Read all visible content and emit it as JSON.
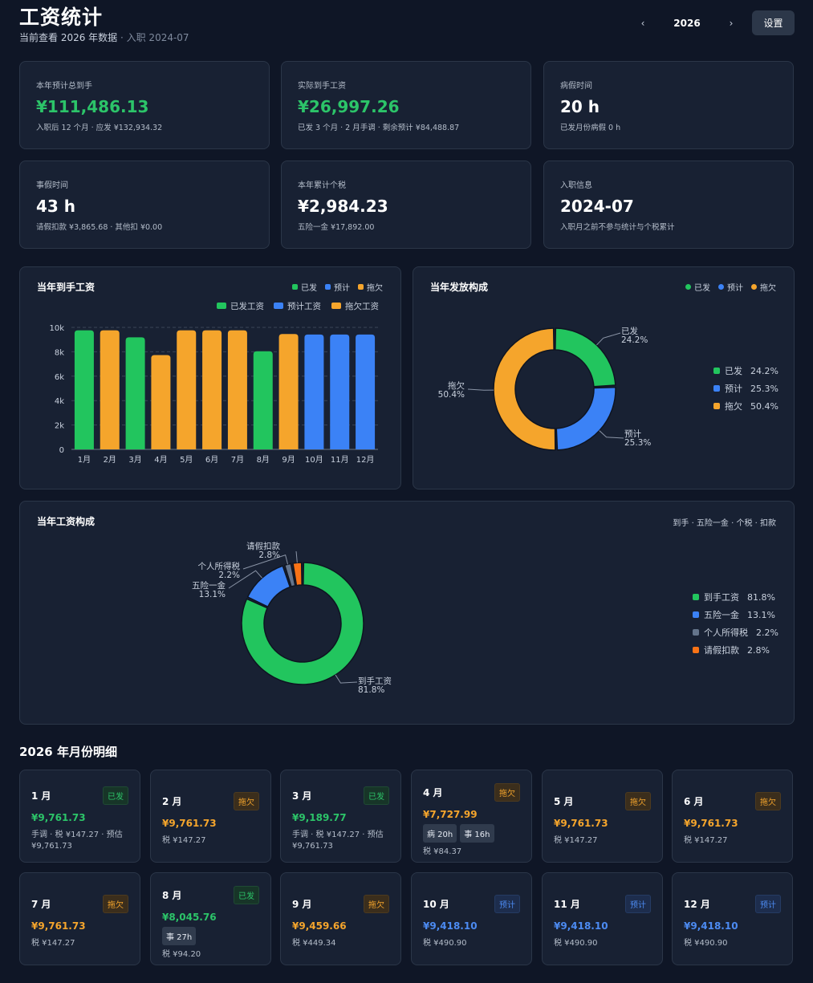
{
  "header": {
    "title": "工资统计",
    "subtitle_main": "当前查看 2026 年数据",
    "subtitle_extra": " · 入职 2024-07",
    "year": "2026",
    "prev_icon": "‹",
    "next_icon": "›",
    "settings_label": "设置"
  },
  "stats": [
    {
      "label": "本年预计总到手",
      "value": "¥111,486.13",
      "sub": "入职后 12 个月 · 应发 ¥132,934.32"
    },
    {
      "label": "实际到手工资",
      "value": "¥26,997.26",
      "sub": "已发 3 个月 · 2 月手调 · 剩余预计 ¥84,488.87"
    },
    {
      "label": "病假时间",
      "value": "20 h",
      "sub": "已发月份病假 0 h"
    },
    {
      "label": "事假时间",
      "value": "43 h",
      "sub": "请假扣款 ¥3,865.68 · 其他扣 ¥0.00"
    },
    {
      "label": "本年累计个税",
      "value": "¥2,984.23",
      "sub": "五险一金 ¥17,892.00"
    },
    {
      "label": "入职信息",
      "value": "2024-07",
      "sub": "入职月之前不参与统计与个税累计"
    }
  ],
  "colors": {
    "paid": "#22c55e",
    "estimate": "#3b82f6",
    "owed": "#f5a52c",
    "tax": "#64748b",
    "leave": "#f97316"
  },
  "bar_panel": {
    "title": "当年到手工资",
    "mini_legend": [
      "已发",
      "预计",
      "拖欠"
    ],
    "chart_legend": [
      "已发工资",
      "预计工资",
      "拖欠工资"
    ]
  },
  "dist_panel": {
    "title": "当年发放构成",
    "mini_legend": [
      "已发",
      "预计",
      "拖欠"
    ]
  },
  "comp_panel": {
    "title": "当年工资构成",
    "hint": "到手 · 五险一金 · 个税 · 扣款"
  },
  "chart_data": [
    {
      "type": "bar",
      "title": "当年到手工资",
      "categories": [
        "1月",
        "2月",
        "3月",
        "4月",
        "5月",
        "6月",
        "7月",
        "8月",
        "9月",
        "10月",
        "11月",
        "12月"
      ],
      "values": [
        9761.73,
        9761.73,
        9189.77,
        7727.99,
        9761.73,
        9761.73,
        9761.73,
        8045.76,
        9459.66,
        9418.1,
        9418.1,
        9418.1
      ],
      "status": [
        "已发",
        "拖欠",
        "已发",
        "拖欠",
        "拖欠",
        "拖欠",
        "拖欠",
        "已发",
        "拖欠",
        "预计",
        "预计",
        "预计"
      ],
      "ylim": [
        0,
        10000
      ],
      "yticks": [
        "0",
        "2k",
        "4k",
        "6k",
        "8k",
        "10k"
      ],
      "legend": [
        "已发工资",
        "预计工资",
        "拖欠工资"
      ],
      "grid": true
    },
    {
      "type": "pie",
      "title": "当年发放构成",
      "labels": [
        "已发",
        "预计",
        "拖欠"
      ],
      "values": [
        24.2,
        25.3,
        50.4
      ],
      "value_labels": [
        "24.2%",
        "25.3%",
        "50.4%"
      ]
    },
    {
      "type": "pie",
      "title": "当年工资构成",
      "labels": [
        "到手工资",
        "五险一金",
        "个人所得税",
        "请假扣款"
      ],
      "values": [
        81.8,
        13.1,
        2.2,
        2.8
      ],
      "value_labels": [
        "81.8%",
        "13.1%",
        "2.2%",
        "2.8%"
      ]
    }
  ],
  "months_title": "2026 年月份明细",
  "months": [
    {
      "name": "1 月",
      "badge": "已发",
      "kind": "paid",
      "amount": "¥9,761.73",
      "chips": [],
      "note": "手调 · 税 ¥147.27 · 预估 ¥9,761.73"
    },
    {
      "name": "2 月",
      "badge": "拖欠",
      "kind": "owe",
      "amount": "¥9,761.73",
      "chips": [],
      "note": "税 ¥147.27"
    },
    {
      "name": "3 月",
      "badge": "已发",
      "kind": "paid",
      "amount": "¥9,189.77",
      "chips": [],
      "note": "手调 · 税 ¥147.27 · 预估 ¥9,761.73"
    },
    {
      "name": "4 月",
      "badge": "拖欠",
      "kind": "owe",
      "amount": "¥7,727.99",
      "chips": [
        "病 20h",
        "事 16h"
      ],
      "note": "税 ¥84.37"
    },
    {
      "name": "5 月",
      "badge": "拖欠",
      "kind": "owe",
      "amount": "¥9,761.73",
      "chips": [],
      "note": "税 ¥147.27"
    },
    {
      "name": "6 月",
      "badge": "拖欠",
      "kind": "owe",
      "amount": "¥9,761.73",
      "chips": [],
      "note": "税 ¥147.27"
    },
    {
      "name": "7 月",
      "badge": "拖欠",
      "kind": "owe",
      "amount": "¥9,761.73",
      "chips": [],
      "note": "税 ¥147.27"
    },
    {
      "name": "8 月",
      "badge": "已发",
      "kind": "paid",
      "amount": "¥8,045.76",
      "chips": [
        "事 27h"
      ],
      "note": "税 ¥94.20"
    },
    {
      "name": "9 月",
      "badge": "拖欠",
      "kind": "owe",
      "amount": "¥9,459.66",
      "chips": [],
      "note": "税 ¥449.34"
    },
    {
      "name": "10 月",
      "badge": "预计",
      "kind": "est",
      "amount": "¥9,418.10",
      "chips": [],
      "note": "税 ¥490.90"
    },
    {
      "name": "11 月",
      "badge": "预计",
      "kind": "est",
      "amount": "¥9,418.10",
      "chips": [],
      "note": "税 ¥490.90"
    },
    {
      "name": "12 月",
      "badge": "预计",
      "kind": "est",
      "amount": "¥9,418.10",
      "chips": [],
      "note": "税 ¥490.90"
    }
  ]
}
